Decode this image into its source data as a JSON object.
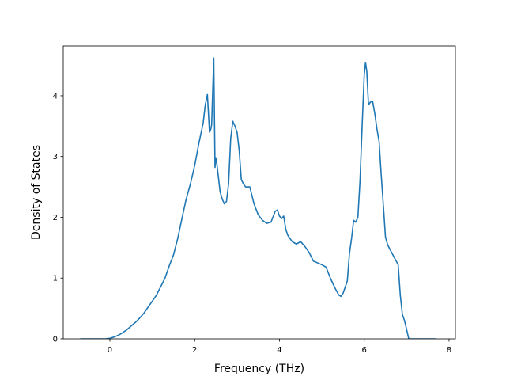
{
  "chart_data": {
    "type": "line",
    "title": "",
    "xlabel": "Frequency (THz)",
    "ylabel": "Density of States",
    "xlim": [
      -1.1,
      8.15
    ],
    "ylim": [
      0,
      4.82
    ],
    "xticks": [
      0,
      2,
      4,
      6,
      8
    ],
    "xtick_labels": [
      "0",
      "2",
      "4",
      "6",
      "8"
    ],
    "yticks": [
      0,
      1,
      2,
      3,
      4
    ],
    "ytick_labels": [
      "0",
      "1",
      "2",
      "3",
      "4"
    ],
    "grid": false,
    "line_color": "#1f77b4",
    "series": [
      {
        "x": [
          -0.7,
          -0.1,
          0.0,
          0.1,
          0.2,
          0.3,
          0.4,
          0.5,
          0.6,
          0.7,
          0.8,
          0.9,
          1.0,
          1.1,
          1.2,
          1.3,
          1.4,
          1.5,
          1.6,
          1.7,
          1.8,
          1.9,
          2.0,
          2.1,
          2.2,
          2.25,
          2.3,
          2.35,
          2.38,
          2.4,
          2.45,
          2.48,
          2.5,
          2.52,
          2.55,
          2.6,
          2.65,
          2.7,
          2.75,
          2.8,
          2.85,
          2.9,
          2.95,
          3.0,
          3.05,
          3.1,
          3.15,
          3.2,
          3.3,
          3.4,
          3.5,
          3.6,
          3.7,
          3.8,
          3.9,
          3.95,
          4.0,
          4.05,
          4.1,
          4.15,
          4.2,
          4.3,
          4.4,
          4.5,
          4.6,
          4.7,
          4.8,
          4.9,
          5.0,
          5.1,
          5.2,
          5.3,
          5.4,
          5.45,
          5.5,
          5.6,
          5.65,
          5.7,
          5.75,
          5.8,
          5.85,
          5.9,
          5.95,
          6.0,
          6.03,
          6.06,
          6.1,
          6.15,
          6.2,
          6.25,
          6.3,
          6.35,
          6.4,
          6.45,
          6.5,
          6.55,
          6.6,
          6.7,
          6.8,
          6.85,
          6.9,
          6.95,
          7.0,
          7.05,
          7.7
        ],
        "y": [
          0.0,
          0.0,
          0.01,
          0.03,
          0.06,
          0.1,
          0.15,
          0.21,
          0.27,
          0.34,
          0.42,
          0.52,
          0.62,
          0.72,
          0.86,
          1.0,
          1.2,
          1.38,
          1.65,
          1.98,
          2.3,
          2.55,
          2.85,
          3.22,
          3.55,
          3.85,
          4.02,
          3.4,
          3.45,
          3.52,
          4.62,
          2.82,
          2.98,
          2.9,
          2.72,
          2.42,
          2.3,
          2.22,
          2.26,
          2.55,
          3.3,
          3.58,
          3.5,
          3.4,
          3.1,
          2.62,
          2.55,
          2.5,
          2.5,
          2.22,
          2.04,
          1.95,
          1.9,
          1.92,
          2.1,
          2.12,
          2.02,
          1.98,
          2.02,
          1.8,
          1.7,
          1.6,
          1.56,
          1.6,
          1.52,
          1.42,
          1.28,
          1.25,
          1.22,
          1.18,
          1.0,
          0.85,
          0.72,
          0.7,
          0.75,
          0.95,
          1.4,
          1.65,
          1.95,
          1.92,
          2.0,
          2.6,
          3.5,
          4.35,
          4.55,
          4.4,
          3.85,
          3.9,
          3.9,
          3.7,
          3.45,
          3.25,
          2.7,
          2.2,
          1.68,
          1.55,
          1.48,
          1.35,
          1.22,
          0.72,
          0.4,
          0.3,
          0.15,
          0.0,
          0.0
        ]
      }
    ]
  }
}
